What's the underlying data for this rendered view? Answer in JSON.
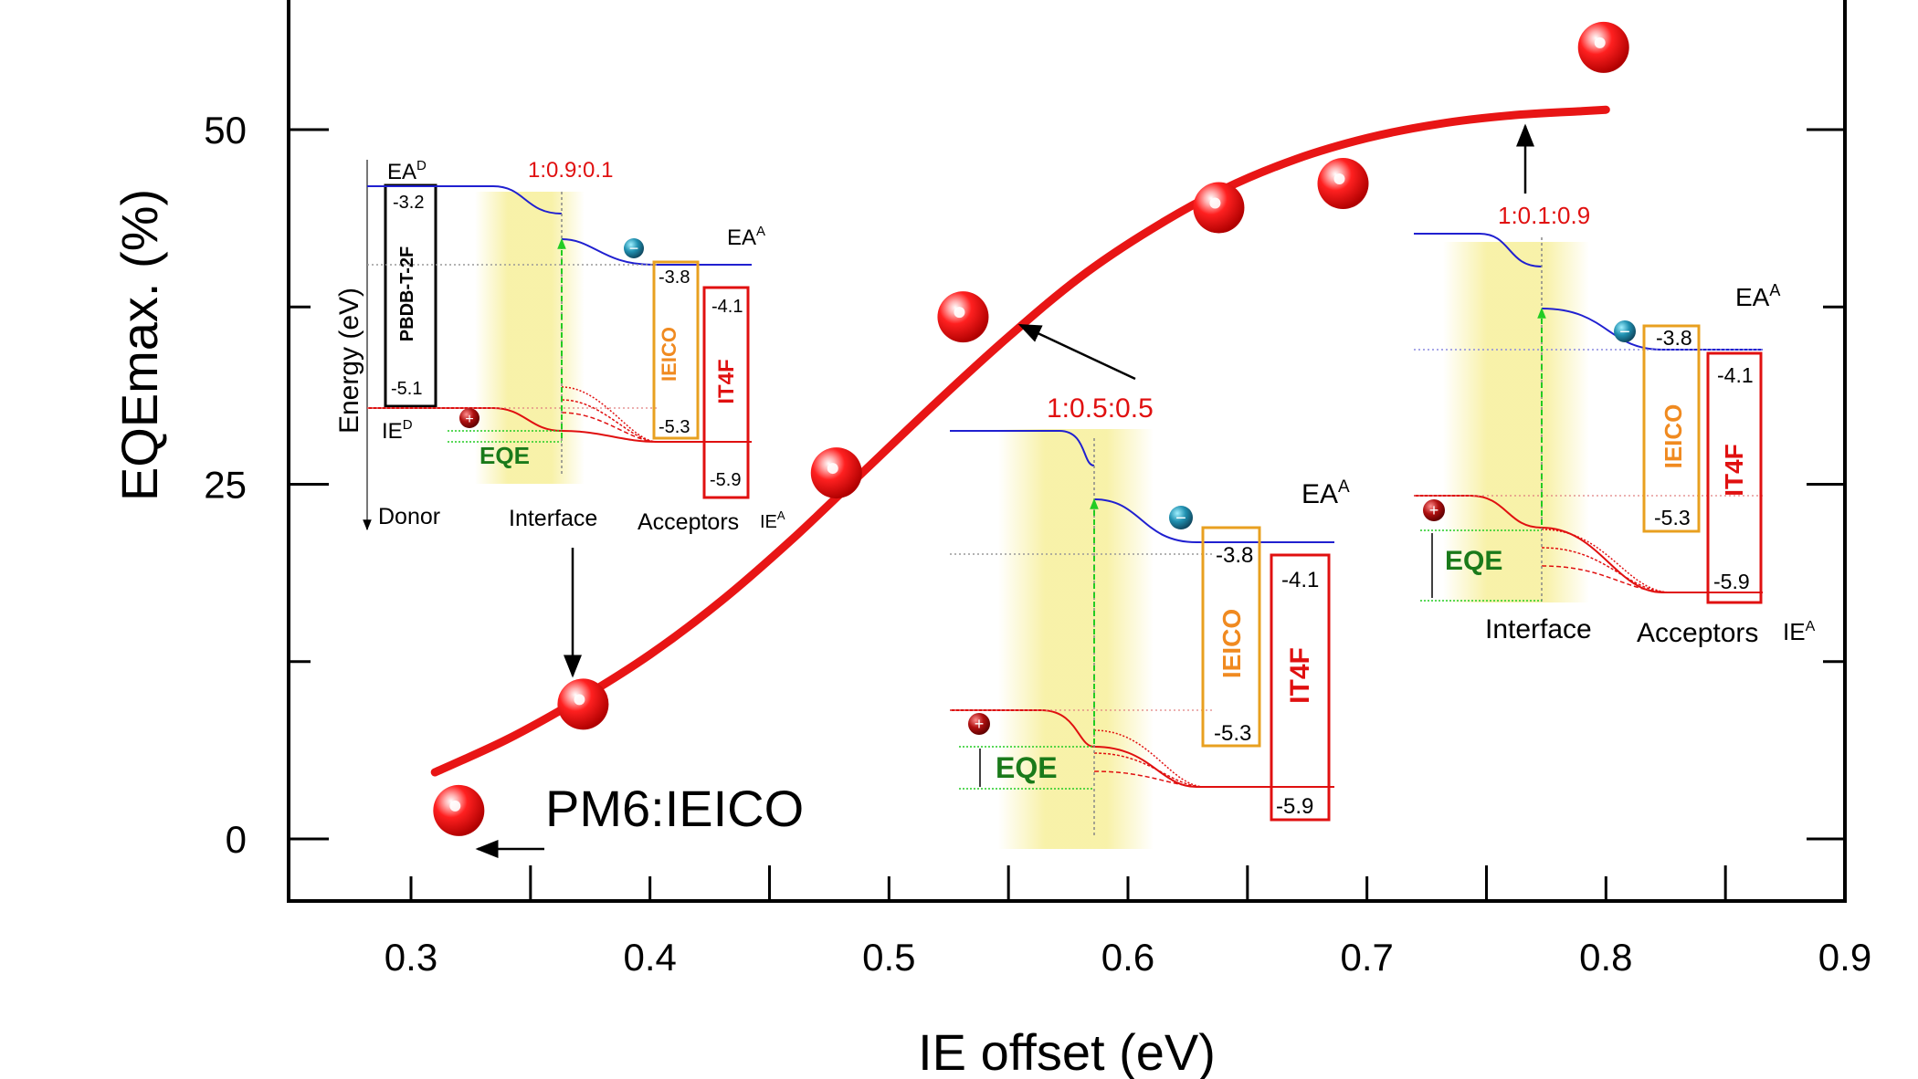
{
  "chart_data": {
    "type": "scatter",
    "xlabel": "IE offset (eV)",
    "ylabel": "EQEmax. (%)",
    "xlim": [
      0.25,
      0.9
    ],
    "ylim": [
      -5,
      60
    ],
    "x_ticks": [
      0.3,
      0.4,
      0.5,
      0.6,
      0.7,
      0.8,
      0.9
    ],
    "x_tick_labels": [
      "0.3",
      "0.4",
      "0.5",
      "0.6",
      "0.7",
      "0.8",
      "0.9"
    ],
    "y_ticks": [
      0,
      25,
      50
    ],
    "y_tick_labels": [
      "0",
      "25",
      "50"
    ],
    "y_minor_ticks": [
      12.5,
      37.5
    ],
    "grid": false,
    "series": [
      {
        "kind": "points",
        "x": [
          0.32,
          0.372,
          0.478,
          0.531,
          0.638,
          0.69,
          0.799
        ],
        "y": [
          2.0,
          9.5,
          25.8,
          36.8,
          44.5,
          46.2,
          55.8
        ]
      },
      {
        "kind": "fit-curve",
        "x": [
          0.31,
          0.34,
          0.37,
          0.4,
          0.43,
          0.46,
          0.49,
          0.52,
          0.55,
          0.58,
          0.61,
          0.64,
          0.67,
          0.7,
          0.73,
          0.76,
          0.79,
          0.8
        ],
        "y": [
          4.7,
          7.0,
          9.8,
          13.0,
          16.8,
          21.2,
          26.0,
          30.8,
          35.4,
          39.6,
          43.0,
          45.8,
          47.9,
          49.4,
          50.4,
          51.0,
          51.3,
          51.4
        ]
      }
    ],
    "annotations": [
      {
        "text": "PM6:IEICO"
      }
    ],
    "insets": [
      {
        "ratio": "1:0.9:0.1",
        "donor_name": "PBDB-T-2F",
        "donor_ea": "-3.2",
        "donor_ie": "-5.1",
        "acc1_name": "IEICO",
        "acc1_ea": "-3.8",
        "acc1_ie": "-5.3",
        "acc2_name": "IT4F",
        "acc2_ea": "-4.1",
        "acc2_ie": "-5.9",
        "y_axis": "Energy (eV)",
        "ea_d": "EA",
        "ea_d_sup": "D",
        "ie_d": "IE",
        "ie_d_sup": "D",
        "ea_a": "EA",
        "ea_a_sup": "A",
        "ie_a": "IE",
        "ie_a_sup": "A",
        "eqe": "EQE",
        "donor_label": "Donor",
        "interface_label": "Interface",
        "acceptors_label": "Acceptors"
      },
      {
        "ratio": "1:0.5:0.5",
        "acc1_name": "IEICO",
        "acc1_ea": "-3.8",
        "acc1_ie": "-5.3",
        "acc2_name": "IT4F",
        "acc2_ea": "-4.1",
        "acc2_ie": "-5.9",
        "ea_a": "EA",
        "ea_a_sup": "A",
        "eqe": "EQE"
      },
      {
        "ratio": "1:0.1:0.9",
        "acc1_name": "IEICO",
        "acc1_ea": "-3.8",
        "acc1_ie": "-5.3",
        "acc2_name": "IT4F",
        "acc2_ea": "-4.1",
        "acc2_ie": "-5.9",
        "ea_a": "EA",
        "ea_a_sup": "A",
        "ie_a": "IE",
        "ie_a_sup": "A",
        "eqe": "EQE",
        "interface_label": "Interface",
        "acceptors_label": "Acceptors"
      }
    ],
    "colors": {
      "points": "#e01010",
      "curve": "#e81515",
      "ea_line": "#2020d0",
      "ie_line": "#e01010",
      "eqe": "#1a7a1a",
      "ieico": "#e8a020",
      "it4f": "#e01010",
      "ratio": "#e01010",
      "highlight": "#f7ef9a",
      "hole": "#a01010",
      "electron": "#2090b0"
    }
  }
}
